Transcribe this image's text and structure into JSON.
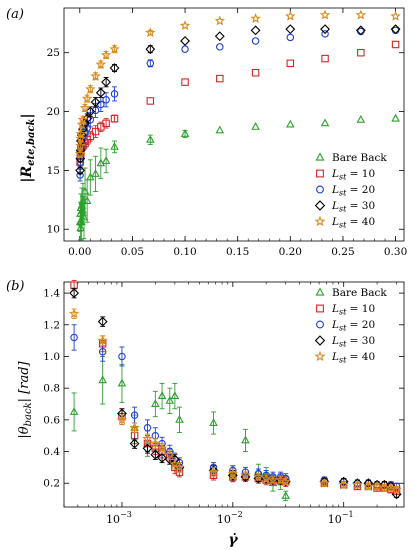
{
  "chart_data": [
    {
      "type": "scatter",
      "panel_label": "(a)",
      "xlabel": "",
      "ylabel": "|R_ete,back|",
      "ylabel_main": "|R",
      "ylabel_sub": "ete,back",
      "ylabel_end": "|",
      "xlim": [
        -0.015,
        0.308
      ],
      "ylim": [
        9.0,
        28.8
      ],
      "x_scale": "linear",
      "xticks": [
        0.0,
        0.05,
        0.1,
        0.15,
        0.2,
        0.25,
        0.3
      ],
      "xtick_labels": [
        "0.00",
        "0.05",
        "0.10",
        "0.15",
        "0.20",
        "0.25",
        "0.30"
      ],
      "yticks": [
        10,
        15,
        20,
        25
      ],
      "ytick_labels": [
        "10",
        "15",
        "20",
        "25"
      ],
      "legend_position": "lower-right",
      "series": [
        {
          "name": "Bare Back",
          "legend_main": "Bare Back",
          "legend_sub": "",
          "legend_end": "",
          "marker": "triangle",
          "color": "#2ca02c",
          "x": [
            0.0003,
            0.0005,
            0.0008,
            0.001,
            0.0015,
            0.002,
            0.0025,
            0.003,
            0.004,
            0.005,
            0.007,
            0.01,
            0.015,
            0.02,
            0.025,
            0.033,
            0.067,
            0.1,
            0.133,
            0.167,
            0.2,
            0.233,
            0.267,
            0.3
          ],
          "y": [
            10.6,
            11.3,
            10.1,
            11.8,
            10.6,
            12.0,
            11.6,
            12.4,
            11.0,
            13.2,
            12.4,
            14.4,
            14.7,
            15.6,
            15.8,
            17.0,
            17.6,
            18.1,
            18.4,
            18.7,
            18.9,
            19.0,
            19.3,
            19.4
          ],
          "err": [
            0.8,
            1.0,
            1.0,
            1.2,
            1.5,
            1.5,
            1.2,
            1.5,
            1.8,
            2.0,
            1.8,
            1.5,
            1.5,
            1.3,
            1.0,
            0.5,
            0.4,
            0.3,
            0.0,
            0.0,
            0.0,
            0.0,
            0.0,
            0.0
          ]
        },
        {
          "name": "L_st = 10",
          "legend_main": "L",
          "legend_sub": "st",
          "legend_end": " = 10",
          "marker": "square",
          "color": "#d62728",
          "x": [
            0.0003,
            0.0005,
            0.0008,
            0.001,
            0.002,
            0.003,
            0.005,
            0.007,
            0.01,
            0.015,
            0.02,
            0.025,
            0.033,
            0.067,
            0.1,
            0.133,
            0.167,
            0.2,
            0.233,
            0.267,
            0.3
          ],
          "y": [
            15.7,
            16.3,
            16.4,
            16.6,
            17.0,
            17.1,
            17.3,
            17.6,
            17.9,
            18.3,
            18.7,
            19.0,
            19.4,
            20.9,
            22.5,
            22.8,
            23.3,
            24.1,
            24.5,
            25.0,
            25.7
          ],
          "err": [
            0.0,
            0.3,
            0.0,
            0.3,
            0.0,
            0.4,
            0.4,
            0.4,
            0.4,
            0.5,
            0.4,
            0.4,
            0.3,
            0.0,
            0.0,
            0.0,
            0.0,
            0.0,
            0.0,
            0.0,
            0.0
          ]
        },
        {
          "name": "L_st = 20",
          "legend_main": "L",
          "legend_sub": "st",
          "legend_end": " = 20",
          "marker": "circle",
          "color": "#1f3fd6",
          "x": [
            0.0003,
            0.0005,
            0.0008,
            0.001,
            0.002,
            0.003,
            0.005,
            0.007,
            0.01,
            0.015,
            0.02,
            0.025,
            0.033,
            0.067,
            0.1,
            0.133,
            0.167,
            0.2,
            0.233,
            0.267,
            0.3
          ],
          "y": [
            14.6,
            15.7,
            16.6,
            17.0,
            17.6,
            17.9,
            18.2,
            18.6,
            19.3,
            20.1,
            20.6,
            21.0,
            21.5,
            24.1,
            25.3,
            25.5,
            26.0,
            26.3,
            26.6,
            26.8,
            26.9
          ],
          "err": [
            0.5,
            0.5,
            0.6,
            0.5,
            0.6,
            0.6,
            0.6,
            0.6,
            0.6,
            0.6,
            0.6,
            0.6,
            0.6,
            0.3,
            0.0,
            0.0,
            0.0,
            0.0,
            0.0,
            0.0,
            0.0
          ]
        },
        {
          "name": "L_st = 30",
          "legend_main": "L",
          "legend_sub": "st",
          "legend_end": " = 30",
          "marker": "diamond",
          "color": "#000000",
          "x": [
            0.0003,
            0.0005,
            0.0008,
            0.001,
            0.002,
            0.003,
            0.005,
            0.007,
            0.01,
            0.015,
            0.02,
            0.025,
            0.033,
            0.067,
            0.1,
            0.133,
            0.167,
            0.2,
            0.233,
            0.267,
            0.3
          ],
          "y": [
            15.0,
            16.0,
            16.7,
            17.5,
            18.0,
            18.5,
            19.0,
            19.4,
            20.0,
            20.8,
            21.6,
            22.5,
            23.7,
            25.3,
            26.0,
            26.4,
            26.9,
            27.0,
            27.0,
            26.9,
            27.0
          ],
          "err": [
            0.3,
            0.3,
            0.3,
            0.3,
            0.3,
            0.3,
            0.3,
            0.4,
            0.4,
            0.4,
            0.4,
            0.4,
            0.3,
            0.3,
            0.0,
            0.0,
            0.0,
            0.0,
            0.0,
            0.0,
            0.0
          ]
        },
        {
          "name": "L_st = 40",
          "legend_main": "L",
          "legend_sub": "st",
          "legend_end": " = 40",
          "marker": "star",
          "color": "#d8891c",
          "x": [
            0.0003,
            0.0005,
            0.0008,
            0.001,
            0.002,
            0.003,
            0.005,
            0.007,
            0.01,
            0.015,
            0.02,
            0.025,
            0.033,
            0.067,
            0.1,
            0.133,
            0.167,
            0.2,
            0.233,
            0.267,
            0.3
          ],
          "y": [
            16.4,
            17.1,
            17.7,
            18.1,
            18.9,
            19.3,
            20.3,
            21.1,
            21.9,
            23.0,
            24.0,
            24.8,
            25.3,
            26.7,
            27.3,
            27.7,
            27.9,
            28.1,
            28.2,
            28.2,
            28.1
          ],
          "err": [
            0.3,
            0.3,
            0.3,
            0.3,
            0.3,
            0.3,
            0.3,
            0.3,
            0.3,
            0.3,
            0.3,
            0.3,
            0.3,
            0.2,
            0.0,
            0.0,
            0.0,
            0.0,
            0.0,
            0.0,
            0.0
          ]
        }
      ]
    },
    {
      "type": "scatter",
      "panel_label": "(b)",
      "xlabel": "γ̇",
      "ylabel": "|θ_back| [rad]",
      "ylabel_main": "|θ",
      "ylabel_sub": "back",
      "ylabel_end": "| [rad]",
      "xlim": [
        0.0003,
        0.35
      ],
      "ylim": [
        0.05,
        1.47
      ],
      "x_scale": "log",
      "xticks": [
        0.001,
        0.01,
        0.1
      ],
      "xtick_base": "10",
      "xtick_exponents": [
        "−3",
        "−2",
        "−1"
      ],
      "yticks": [
        0.2,
        0.4,
        0.6,
        0.8,
        1.0,
        1.2,
        1.4
      ],
      "ytick_labels": [
        "0.2",
        "0.4",
        "0.6",
        "0.8",
        "1.0",
        "1.2",
        "1.4"
      ],
      "legend_position": "top-right",
      "series": [
        {
          "name": "Bare Back",
          "legend_main": "Bare Back",
          "legend_sub": "",
          "legend_end": "",
          "marker": "triangle",
          "color": "#2ca02c",
          "x": [
            0.00037,
            0.00067,
            0.001,
            0.0013,
            0.0017,
            0.002,
            0.0023,
            0.0027,
            0.003,
            0.0033,
            0.0067,
            0.01,
            0.013,
            0.017,
            0.02,
            0.023,
            0.027,
            0.03
          ],
          "y": [
            0.65,
            0.85,
            0.83,
            0.55,
            0.45,
            0.7,
            0.75,
            0.72,
            0.75,
            0.6,
            0.58,
            0.26,
            0.47,
            0.27,
            0.25,
            0.2,
            0.21,
            0.12
          ],
          "err": [
            0.12,
            0.15,
            0.12,
            0.08,
            0.08,
            0.08,
            0.08,
            0.08,
            0.08,
            0.08,
            0.07,
            0.05,
            0.07,
            0.05,
            0.05,
            0.05,
            0.05,
            0.03
          ]
        },
        {
          "name": "L_st = 10",
          "legend_main": "L",
          "legend_sub": "st",
          "legend_end": " = 10",
          "marker": "square",
          "color": "#d62728",
          "x": [
            0.00037,
            0.00067,
            0.001,
            0.0013,
            0.0017,
            0.002,
            0.0023,
            0.0027,
            0.003,
            0.0033,
            0.0067,
            0.01,
            0.013,
            0.017,
            0.02,
            0.023,
            0.027,
            0.03,
            0.067,
            0.1,
            0.133,
            0.167,
            0.2,
            0.233,
            0.267,
            0.3
          ],
          "y": [
            1.45,
            1.08,
            0.62,
            0.5,
            0.45,
            0.42,
            0.4,
            0.38,
            0.3,
            0.27,
            0.25,
            0.24,
            0.24,
            0.23,
            0.22,
            0.22,
            0.22,
            0.21,
            0.2,
            0.19,
            0.18,
            0.18,
            0.17,
            0.17,
            0.16,
            0.15
          ],
          "err": [
            0.03,
            0.05,
            0.05,
            0.05,
            0.05,
            0.04,
            0.04,
            0.04,
            0.04,
            0.03,
            0.03,
            0.03,
            0.03,
            0.03,
            0.03,
            0.03,
            0.03,
            0.03,
            0.02,
            0.02,
            0.02,
            0.02,
            0.02,
            0.02,
            0.02,
            0.02
          ]
        },
        {
          "name": "L_st = 20",
          "legend_main": "L",
          "legend_sub": "st",
          "legend_end": " = 20",
          "marker": "circle",
          "color": "#1f3fd6",
          "x": [
            0.00037,
            0.00067,
            0.001,
            0.0013,
            0.0017,
            0.002,
            0.0023,
            0.0027,
            0.003,
            0.0033,
            0.0067,
            0.01,
            0.013,
            0.017,
            0.02,
            0.023,
            0.027,
            0.03,
            0.067,
            0.1,
            0.133,
            0.167,
            0.2,
            0.233,
            0.267,
            0.3
          ],
          "y": [
            1.12,
            1.03,
            1.0,
            0.63,
            0.55,
            0.5,
            0.45,
            0.4,
            0.35,
            0.33,
            0.3,
            0.28,
            0.27,
            0.26,
            0.25,
            0.24,
            0.24,
            0.23,
            0.22,
            0.21,
            0.2,
            0.2,
            0.19,
            0.19,
            0.19,
            0.18
          ],
          "err": [
            0.08,
            0.06,
            0.06,
            0.05,
            0.05,
            0.05,
            0.04,
            0.04,
            0.04,
            0.03,
            0.03,
            0.03,
            0.03,
            0.03,
            0.03,
            0.03,
            0.03,
            0.03,
            0.02,
            0.02,
            0.02,
            0.02,
            0.02,
            0.02,
            0.02,
            0.02
          ]
        },
        {
          "name": "L_st = 30",
          "legend_main": "L",
          "legend_sub": "st",
          "legend_end": " = 30",
          "marker": "diamond",
          "color": "#000000",
          "x": [
            0.00037,
            0.00067,
            0.001,
            0.0013,
            0.0017,
            0.002,
            0.0023,
            0.0027,
            0.003,
            0.0033,
            0.0067,
            0.01,
            0.013,
            0.017,
            0.02,
            0.023,
            0.027,
            0.03,
            0.067,
            0.1,
            0.133,
            0.167,
            0.2,
            0.233,
            0.267,
            0.3
          ],
          "y": [
            1.4,
            1.22,
            0.64,
            0.45,
            0.42,
            0.38,
            0.36,
            0.35,
            0.35,
            0.3,
            0.28,
            0.25,
            0.24,
            0.23,
            0.23,
            0.22,
            0.22,
            0.21,
            0.21,
            0.21,
            0.2,
            0.2,
            0.19,
            0.19,
            0.18,
            0.13
          ],
          "err": [
            0.03,
            0.03,
            0.03,
            0.03,
            0.03,
            0.03,
            0.03,
            0.03,
            0.03,
            0.03,
            0.03,
            0.03,
            0.02,
            0.02,
            0.02,
            0.02,
            0.02,
            0.02,
            0.02,
            0.02,
            0.02,
            0.02,
            0.02,
            0.02,
            0.02,
            0.02
          ]
        },
        {
          "name": "L_st = 40",
          "legend_main": "L",
          "legend_sub": "st",
          "legend_end": " = 40",
          "marker": "star",
          "color": "#d8891c",
          "x": [
            0.00037,
            0.00067,
            0.001,
            0.0013,
            0.0017,
            0.002,
            0.0023,
            0.0027,
            0.003,
            0.0033,
            0.0067,
            0.01,
            0.013,
            0.017,
            0.02,
            0.023,
            0.027,
            0.03,
            0.067,
            0.1,
            0.133,
            0.167,
            0.2,
            0.233,
            0.267,
            0.3
          ],
          "y": [
            1.27,
            1.1,
            0.6,
            0.55,
            0.48,
            0.45,
            0.42,
            0.38,
            0.32,
            0.3,
            0.27,
            0.26,
            0.25,
            0.24,
            0.23,
            0.22,
            0.22,
            0.21,
            0.2,
            0.19,
            0.19,
            0.18,
            0.18,
            0.17,
            0.17,
            0.16
          ],
          "err": [
            0.03,
            0.03,
            0.03,
            0.03,
            0.03,
            0.03,
            0.03,
            0.03,
            0.03,
            0.03,
            0.03,
            0.03,
            0.02,
            0.02,
            0.02,
            0.02,
            0.02,
            0.02,
            0.02,
            0.02,
            0.02,
            0.02,
            0.02,
            0.02,
            0.02,
            0.02
          ]
        }
      ]
    }
  ]
}
